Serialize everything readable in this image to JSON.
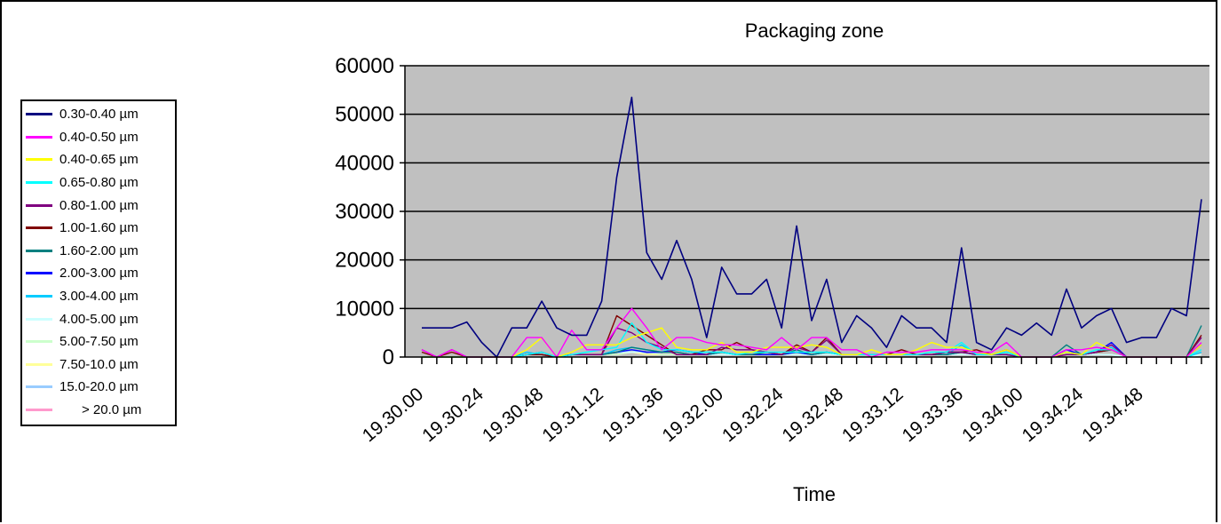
{
  "chart_data": {
    "type": "line",
    "title": "Packaging zone",
    "xlabel": "Time",
    "ylabel": "",
    "ylim": [
      0,
      60000
    ],
    "yticks": [
      "0",
      "10000",
      "20000",
      "30000",
      "40000",
      "50000",
      "60000"
    ],
    "xtick_labels": [
      "19.30.00",
      "19.30.24",
      "19.30.48",
      "19.31.12",
      "19.31.36",
      "19.32.00",
      "19.32.24",
      "19.32.48",
      "19.33.12",
      "19.33.36",
      "19.34.00",
      "19.34.24",
      "19.34.48"
    ],
    "x_interval_seconds": 6,
    "grid": "horizontal",
    "plot_background": "#c0c0c0",
    "legend_position": "left",
    "series": [
      {
        "name": "0.30-0.40 µm",
        "color": "#000080",
        "values": [
          6000,
          6000,
          6000,
          7200,
          3000,
          0,
          6000,
          6000,
          11500,
          6000,
          4500,
          4500,
          11500,
          37000,
          53500,
          21500,
          16000,
          24000,
          16000,
          4000,
          18500,
          13000,
          13000,
          16000,
          6000,
          27000,
          7500,
          16000,
          3000,
          8500,
          6000,
          2000,
          8500,
          6000,
          6000,
          3000,
          22500,
          3000,
          1500,
          6000,
          4500,
          7000,
          4500,
          14000,
          6000,
          8500,
          10000,
          3000,
          4000,
          4000,
          10000,
          8500,
          32500
        ]
      },
      {
        "name": "0.40-0.50 µm",
        "color": "#ff00ff",
        "values": [
          1500,
          0,
          1500,
          0,
          0,
          0,
          0,
          4000,
          4000,
          0,
          5500,
          1500,
          1500,
          6000,
          10000,
          6000,
          1500,
          4000,
          4000,
          3000,
          2500,
          2500,
          2000,
          1500,
          4000,
          1500,
          4000,
          4000,
          1500,
          1500,
          0,
          1000,
          1000,
          1000,
          1500,
          1500,
          1500,
          1000,
          1000,
          3000,
          0,
          0,
          0,
          1500,
          1500,
          2000,
          1500,
          0,
          0,
          0,
          0,
          0,
          3000
        ]
      },
      {
        "name": "0.40-0.65 µm",
        "color": "#ffff00",
        "values": [
          0,
          0,
          0,
          0,
          0,
          0,
          0,
          1500,
          4000,
          0,
          1000,
          2500,
          2500,
          2500,
          4000,
          5000,
          6000,
          2000,
          1500,
          1500,
          3000,
          1000,
          1000,
          2000,
          2000,
          2000,
          2500,
          2000,
          500,
          500,
          1500,
          500,
          500,
          1500,
          3000,
          2000,
          2000,
          1000,
          500,
          1500,
          0,
          0,
          0,
          1000,
          500,
          3000,
          1500,
          0,
          0,
          0,
          0,
          0,
          2500
        ]
      },
      {
        "name": "0.65-0.80 µm",
        "color": "#00ffff",
        "values": [
          0,
          0,
          0,
          0,
          0,
          0,
          0,
          500,
          1000,
          0,
          500,
          1000,
          1500,
          2000,
          7000,
          3000,
          1500,
          1500,
          1000,
          1000,
          1000,
          500,
          1000,
          1000,
          1000,
          1000,
          1000,
          1000,
          500,
          500,
          500,
          500,
          500,
          500,
          1000,
          1000,
          3000,
          500,
          500,
          1000,
          0,
          0,
          0,
          1000,
          500,
          1500,
          1500,
          0,
          0,
          0,
          0,
          0,
          1500
        ]
      },
      {
        "name": "0.80-1.00 µm",
        "color": "#800080",
        "values": [
          1500,
          0,
          1500,
          0,
          0,
          0,
          0,
          500,
          1000,
          0,
          500,
          500,
          500,
          6000,
          5000,
          3000,
          2000,
          500,
          500,
          500,
          2000,
          1500,
          1500,
          1000,
          500,
          2000,
          1000,
          3500,
          500,
          500,
          500,
          500,
          500,
          500,
          500,
          1000,
          1000,
          500,
          500,
          500,
          0,
          0,
          0,
          500,
          500,
          1000,
          2500,
          0,
          0,
          0,
          0,
          0,
          4000
        ]
      },
      {
        "name": "1.00-1.60 µm",
        "color": "#800000",
        "values": [
          1000,
          0,
          1000,
          0,
          0,
          0,
          0,
          500,
          500,
          0,
          500,
          500,
          500,
          8500,
          6500,
          4500,
          2500,
          500,
          500,
          1500,
          1500,
          3000,
          1500,
          1000,
          500,
          2500,
          1000,
          4000,
          500,
          500,
          500,
          500,
          1500,
          500,
          500,
          1000,
          1000,
          1500,
          500,
          1500,
          0,
          0,
          0,
          500,
          500,
          1000,
          1500,
          0,
          0,
          0,
          0,
          0,
          4500
        ]
      },
      {
        "name": "1.60-2.00 µm",
        "color": "#008080",
        "values": [
          0,
          0,
          0,
          0,
          0,
          0,
          0,
          500,
          500,
          0,
          500,
          500,
          500,
          1000,
          2000,
          1500,
          1000,
          1000,
          500,
          500,
          1000,
          500,
          500,
          1000,
          500,
          1500,
          500,
          1000,
          500,
          500,
          500,
          500,
          500,
          500,
          500,
          500,
          1000,
          500,
          500,
          500,
          0,
          0,
          0,
          2500,
          500,
          1000,
          1500,
          0,
          0,
          0,
          0,
          0,
          6500
        ]
      },
      {
        "name": "2.00-3.00 µm",
        "color": "#0000ff",
        "values": [
          0,
          0,
          0,
          0,
          0,
          0,
          0,
          500,
          500,
          0,
          500,
          500,
          500,
          1000,
          1500,
          1000,
          1000,
          1500,
          1000,
          500,
          1000,
          500,
          500,
          500,
          500,
          1000,
          500,
          1000,
          500,
          500,
          500,
          500,
          500,
          500,
          500,
          500,
          1000,
          500,
          500,
          500,
          0,
          0,
          0,
          1500,
          500,
          1000,
          3000,
          0,
          0,
          0,
          0,
          0,
          2500
        ]
      },
      {
        "name": "3.00-4.00 µm",
        "color": "#00ccff",
        "values": [
          0,
          0,
          0,
          0,
          0,
          0,
          0,
          1000,
          500,
          0,
          500,
          500,
          500,
          1500,
          2000,
          1500,
          1000,
          1500,
          1000,
          500,
          1000,
          500,
          500,
          500,
          500,
          1000,
          500,
          1000,
          500,
          500,
          500,
          500,
          500,
          500,
          500,
          500,
          2500,
          500,
          500,
          1000,
          0,
          0,
          0,
          1000,
          500,
          1000,
          2000,
          0,
          0,
          0,
          0,
          0,
          1000
        ]
      },
      {
        "name": "4.00-5.00 µm",
        "color": "#ccffff",
        "values": [
          0,
          0,
          0,
          0,
          0,
          0,
          0,
          500,
          500,
          0,
          500,
          500,
          500,
          1000,
          1000,
          1000,
          1000,
          1000,
          500,
          500,
          500,
          500,
          500,
          500,
          500,
          500,
          500,
          500,
          500,
          500,
          500,
          500,
          500,
          500,
          500,
          500,
          500,
          500,
          500,
          500,
          0,
          0,
          0,
          500,
          500,
          500,
          500,
          0,
          0,
          0,
          0,
          0,
          500
        ]
      },
      {
        "name": "5.00-7.50 µm",
        "color": "#ccffcc",
        "values": [
          0,
          0,
          0,
          0,
          0,
          0,
          0,
          500,
          500,
          0,
          500,
          500,
          500,
          500,
          1000,
          1000,
          500,
          500,
          500,
          500,
          500,
          500,
          500,
          500,
          500,
          500,
          500,
          500,
          500,
          500,
          500,
          500,
          500,
          500,
          500,
          500,
          500,
          500,
          500,
          500,
          0,
          0,
          0,
          500,
          500,
          500,
          500,
          0,
          0,
          0,
          0,
          0,
          500
        ]
      },
      {
        "name": "7.50-10.0 µm",
        "color": "#ffff99",
        "values": [
          0,
          0,
          0,
          0,
          0,
          0,
          0,
          500,
          500,
          0,
          500,
          500,
          500,
          500,
          1000,
          500,
          500,
          500,
          500,
          500,
          500,
          500,
          500,
          500,
          500,
          500,
          500,
          500,
          500,
          500,
          500,
          500,
          500,
          500,
          500,
          500,
          500,
          500,
          500,
          500,
          0,
          0,
          0,
          500,
          500,
          500,
          500,
          0,
          0,
          0,
          0,
          0,
          500
        ]
      },
      {
        "name": "15.0-20.0 µm",
        "color": "#99ccff",
        "values": [
          0,
          0,
          0,
          0,
          0,
          0,
          0,
          500,
          500,
          0,
          500,
          500,
          500,
          500,
          1500,
          500,
          500,
          500,
          500,
          500,
          500,
          500,
          500,
          500,
          500,
          500,
          500,
          500,
          500,
          500,
          500,
          500,
          500,
          500,
          500,
          500,
          500,
          500,
          500,
          500,
          0,
          0,
          0,
          500,
          500,
          500,
          500,
          0,
          0,
          0,
          0,
          0,
          500
        ]
      },
      {
        "name": "      > 20.0 µm",
        "color": "#ff99cc",
        "values": [
          0,
          0,
          0,
          0,
          0,
          0,
          0,
          500,
          500,
          0,
          500,
          500,
          500,
          500,
          1000,
          500,
          500,
          500,
          500,
          500,
          500,
          500,
          500,
          500,
          500,
          500,
          500,
          500,
          500,
          500,
          500,
          500,
          500,
          500,
          500,
          500,
          500,
          500,
          500,
          500,
          0,
          0,
          0,
          500,
          500,
          500,
          500,
          0,
          0,
          0,
          0,
          0,
          500
        ]
      }
    ]
  }
}
